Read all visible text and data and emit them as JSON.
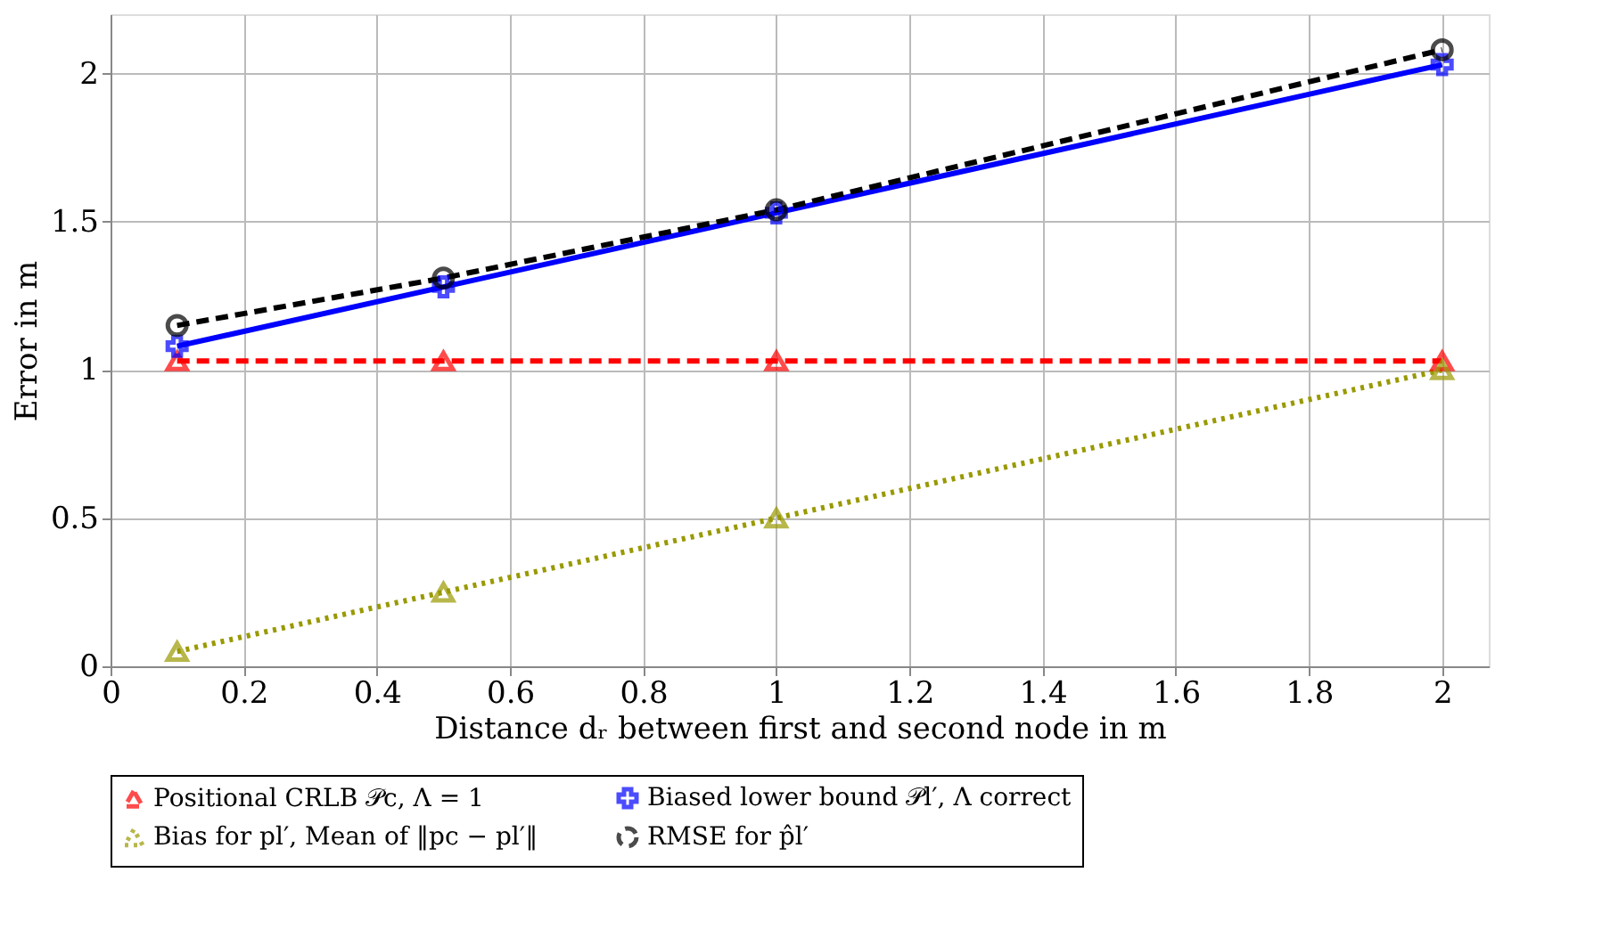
{
  "chart_data": {
    "type": "line",
    "xlabel": "Distance dᵣ between first and second node in m",
    "ylabel": "Error in m",
    "x": [
      0.1,
      0.5,
      1,
      2
    ],
    "series": [
      {
        "name": "Positional CRLB 𝒫c, Λ = 1",
        "color": "#ff0000",
        "values": [
          1.03,
          1.03,
          1.03,
          1.03
        ],
        "marker": "triangle",
        "line_style": "dashed"
      },
      {
        "name": "Biased lower bound 𝒫l′, Λ correct",
        "color": "#0000ff",
        "values": [
          1.08,
          1.28,
          1.53,
          2.03
        ],
        "marker": "cross",
        "line_style": "solid"
      },
      {
        "name": "Bias for pl′, Mean of ‖pc − pl′‖",
        "color": "#999900",
        "values": [
          0.05,
          0.25,
          0.5,
          1.0
        ],
        "marker": "triangle",
        "line_style": "dotted"
      },
      {
        "name": "RMSE for p̂l′",
        "color": "#000000",
        "values": [
          1.15,
          1.31,
          1.54,
          2.08
        ],
        "marker": "circle",
        "line_style": "dashed"
      }
    ],
    "xlim": [
      0,
      2.07
    ],
    "ylim": [
      0,
      2.2
    ],
    "xticks": [
      0,
      0.2,
      0.4,
      0.6,
      0.8,
      1,
      1.2,
      1.4,
      1.6,
      1.8,
      2
    ],
    "yticks": [
      0,
      0.5,
      1,
      1.5,
      2
    ],
    "grid": true,
    "legend": "bottom"
  }
}
